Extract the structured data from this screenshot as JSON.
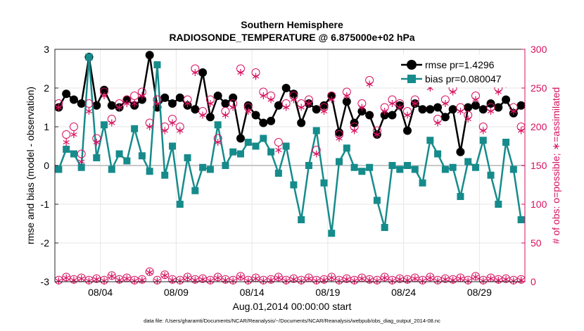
{
  "colors": {
    "rmse": "#000000",
    "bias": "#168B8B",
    "counts": "#D6115F",
    "zero_line": "#C8C8C8",
    "grid": "#E6E6E6"
  },
  "chart_data": {
    "type": "line",
    "title": "Southern Hemisphere",
    "subtitle": "RADIOSONDE_TEMPERATURE @ 6.875000e+02 hPa",
    "xlabel": "Aug.01,2014 00:00:00 start",
    "ylabel": "rmse and bias (model - observation)",
    "y2label": "# of obs: o=possible; ∗=assimilated",
    "footnote": "data file: /Users/gharamti/Documents/NCAR/Reanalysis/~/Documents/NCAR/Reanalysis/webpub/obs_diag_output_2014-08.nc",
    "x_range": [
      0,
      62
    ],
    "x_unit": "12-hour analysis cycles since Aug.01,2014 00:00",
    "ylim": [
      -3,
      3
    ],
    "y2lim": [
      0,
      300
    ],
    "x_ticks": [
      {
        "label": "08/04",
        "value": 6
      },
      {
        "label": "08/09",
        "value": 16
      },
      {
        "label": "08/14",
        "value": 26
      },
      {
        "label": "08/19",
        "value": 36
      },
      {
        "label": "08/24",
        "value": 46
      },
      {
        "label": "08/29",
        "value": 56
      }
    ],
    "y_ticks": [
      {
        "label": "-3",
        "value": -3
      },
      {
        "label": "-2",
        "value": -2
      },
      {
        "label": "-1",
        "value": -1
      },
      {
        "label": "0",
        "value": 0
      },
      {
        "label": "1",
        "value": 1
      },
      {
        "label": "2",
        "value": 2
      },
      {
        "label": "3",
        "value": 3
      }
    ],
    "y2_ticks": [
      {
        "label": "0",
        "value": 0
      },
      {
        "label": "50",
        "value": 50
      },
      {
        "label": "100",
        "value": 100
      },
      {
        "label": "150",
        "value": 150
      },
      {
        "label": "200",
        "value": 200
      },
      {
        "label": "250",
        "value": 250
      },
      {
        "label": "300",
        "value": 300
      }
    ],
    "legend": {
      "position": "top-right",
      "rmse_label": "rmse pr=1.4296",
      "bias_label": "bias pr=0.080047"
    },
    "series": [
      {
        "name": "rmse",
        "axis": "left",
        "marker": "circle",
        "x": [
          0.5,
          1.5,
          2.5,
          3.5,
          4.5,
          5.5,
          6.5,
          7.5,
          8.5,
          9.5,
          10.5,
          11.5,
          12.5,
          13.5,
          14.5,
          15.5,
          16.5,
          17.5,
          18.5,
          19.5,
          20.5,
          21.5,
          22.5,
          23.5,
          24.5,
          25.5,
          26.5,
          27.5,
          28.5,
          29.5,
          30.5,
          31.5,
          32.5,
          33.5,
          34.5,
          35.5,
          36.5,
          37.5,
          38.5,
          39.5,
          40.5,
          41.5,
          42.5,
          43.5,
          44.5,
          45.5,
          46.5,
          47.5,
          48.5,
          49.5,
          50.5,
          51.5,
          52.5,
          53.5,
          54.5,
          55.5,
          56.5,
          57.5,
          58.5,
          59.5,
          60.5,
          61.5
        ],
        "values": [
          1.5,
          1.85,
          1.7,
          1.6,
          2.8,
          1.55,
          1.95,
          1.55,
          1.5,
          1.7,
          1.55,
          1.7,
          2.85,
          1.5,
          1.75,
          1.6,
          1.75,
          1.55,
          1.45,
          2.4,
          1.25,
          1.8,
          1.6,
          1.75,
          0.7,
          1.55,
          1.3,
          1.1,
          1.15,
          1.55,
          2.0,
          1.85,
          1.1,
          1.6,
          1.45,
          1.55,
          1.8,
          0.85,
          1.65,
          1.1,
          1.4,
          1.3,
          0.8,
          1.3,
          1.3,
          1.55,
          0.9,
          1.6,
          1.45,
          1.45,
          1.5,
          1.25,
          1.45,
          0.35,
          1.5,
          1.55,
          1.45,
          1.6,
          1.5,
          1.7,
          1.35,
          1.55
        ]
      },
      {
        "name": "bias",
        "axis": "left",
        "marker": "square",
        "x": [
          0.5,
          1.5,
          2.5,
          3.5,
          4.5,
          5.5,
          6.5,
          7.5,
          8.5,
          9.5,
          10.5,
          11.5,
          12.5,
          13.5,
          14.5,
          15.5,
          16.5,
          17.5,
          18.5,
          19.5,
          20.5,
          21.5,
          22.5,
          23.5,
          24.5,
          25.5,
          26.5,
          27.5,
          28.5,
          29.5,
          30.5,
          31.5,
          32.5,
          33.5,
          34.5,
          35.5,
          36.5,
          37.5,
          38.5,
          39.5,
          40.5,
          41.5,
          42.5,
          43.5,
          44.5,
          45.5,
          46.5,
          47.5,
          48.5,
          49.5,
          50.5,
          51.5,
          52.5,
          53.5,
          54.5,
          55.5,
          56.5,
          57.5,
          58.5,
          59.5,
          60.5,
          61.5
        ],
        "values": [
          -0.1,
          0.42,
          0.3,
          -0.05,
          2.8,
          0.2,
          1.05,
          -0.1,
          0.3,
          0.12,
          0.95,
          0.25,
          -0.15,
          2.6,
          -0.25,
          0.5,
          -1.0,
          0.2,
          -0.65,
          -0.05,
          -0.1,
          1.05,
          0.0,
          0.35,
          0.3,
          0.6,
          0.5,
          0.7,
          0.35,
          -0.2,
          0.5,
          -0.5,
          -1.4,
          0.0,
          0.9,
          -0.45,
          -1.75,
          0.1,
          0.45,
          -0.05,
          -0.15,
          -0.05,
          -0.9,
          -1.6,
          0.0,
          -0.1,
          0.0,
          -0.1,
          -0.45,
          0.65,
          0.3,
          -0.1,
          -0.05,
          -0.8,
          0.1,
          -0.05,
          0.65,
          -0.25,
          -1.0,
          0.6,
          -0.1,
          -1.4
        ]
      },
      {
        "name": "# of obs possible",
        "axis": "right",
        "marker": "open-circle",
        "x": [
          0.5,
          1.5,
          2.5,
          3.5,
          4.5,
          5.5,
          6.5,
          7.5,
          8.5,
          9.5,
          10.5,
          11.5,
          12.5,
          13.5,
          14.5,
          15.5,
          16.5,
          17.5,
          18.5,
          19.5,
          20.5,
          21.5,
          22.5,
          23.5,
          24.5,
          25.5,
          26.5,
          27.5,
          28.5,
          29.5,
          30.5,
          31.5,
          32.5,
          33.5,
          34.5,
          35.5,
          36.5,
          37.5,
          38.5,
          39.5,
          40.5,
          41.5,
          42.5,
          43.5,
          44.5,
          45.5,
          46.5,
          47.5,
          48.5,
          49.5,
          50.5,
          51.5,
          52.5,
          53.5,
          54.5,
          55.5,
          56.5,
          57.5,
          58.5,
          59.5,
          60.5,
          61.5
        ],
        "values": [
          230,
          190,
          200,
          165,
          230,
          185,
          245,
          210,
          230,
          235,
          240,
          245,
          205,
          235,
          200,
          210,
          200,
          235,
          275,
          220,
          235,
          185,
          220,
          230,
          275,
          225,
          270,
          245,
          240,
          180,
          230,
          240,
          230,
          235,
          170,
          225,
          240,
          190,
          245,
          200,
          230,
          260,
          195,
          225,
          235,
          230,
          220,
          235,
          280,
          260,
          210,
          235,
          250,
          225,
          215,
          240,
          200,
          225,
          250,
          260,
          225,
          200
        ]
      },
      {
        "name": "# of obs assimilated",
        "axis": "right",
        "marker": "asterisk",
        "x": [
          0.5,
          1.5,
          2.5,
          3.5,
          4.5,
          5.5,
          6.5,
          7.5,
          8.5,
          9.5,
          10.5,
          11.5,
          12.5,
          13.5,
          14.5,
          15.5,
          16.5,
          17.5,
          18.5,
          19.5,
          20.5,
          21.5,
          22.5,
          23.5,
          24.5,
          25.5,
          26.5,
          27.5,
          28.5,
          29.5,
          30.5,
          31.5,
          32.5,
          33.5,
          34.5,
          35.5,
          36.5,
          37.5,
          38.5,
          39.5,
          40.5,
          41.5,
          42.5,
          43.5,
          44.5,
          45.5,
          46.5,
          47.5,
          48.5,
          49.5,
          50.5,
          51.5,
          52.5,
          53.5,
          54.5,
          55.5,
          56.5,
          57.5,
          58.5,
          59.5,
          60.5,
          61.5
        ],
        "values": [
          225,
          180,
          190,
          155,
          220,
          180,
          240,
          205,
          225,
          230,
          230,
          240,
          200,
          230,
          195,
          205,
          195,
          230,
          270,
          215,
          230,
          180,
          215,
          225,
          270,
          220,
          265,
          240,
          235,
          170,
          225,
          235,
          225,
          230,
          165,
          220,
          235,
          185,
          240,
          195,
          225,
          255,
          190,
          220,
          230,
          225,
          215,
          230,
          262,
          250,
          205,
          230,
          245,
          220,
          210,
          235,
          195,
          220,
          245,
          255,
          220,
          195
        ]
      },
      {
        "name": "# of obs (bottom possible)",
        "axis": "right",
        "marker": "open-circle",
        "x": [
          0.5,
          1.5,
          2.5,
          3.5,
          4.5,
          5.5,
          6.5,
          7.5,
          8.5,
          9.5,
          10.5,
          11.5,
          12.5,
          13.5,
          14.5,
          15.5,
          16.5,
          17.5,
          18.5,
          19.5,
          20.5,
          21.5,
          22.5,
          23.5,
          24.5,
          25.5,
          26.5,
          27.5,
          28.5,
          29.5,
          30.5,
          31.5,
          32.5,
          33.5,
          34.5,
          35.5,
          36.5,
          37.5,
          38.5,
          39.5,
          40.5,
          41.5,
          42.5,
          43.5,
          44.5,
          45.5,
          46.5,
          47.5,
          48.5,
          49.5,
          50.5,
          51.5,
          52.5,
          53.5,
          54.5,
          55.5,
          56.5,
          57.5,
          58.5,
          59.5,
          60.5,
          61.5
        ],
        "values": [
          2,
          6,
          3,
          5,
          2,
          4,
          2,
          8,
          3,
          5,
          2,
          3,
          13,
          2,
          9,
          3,
          2,
          6,
          3,
          4,
          2,
          6,
          3,
          2,
          7,
          2,
          5,
          2,
          3,
          6,
          2,
          4,
          2,
          5,
          2,
          3,
          6,
          2,
          4,
          2,
          5,
          3,
          2,
          6,
          2,
          4,
          3,
          5,
          2,
          6,
          2,
          4,
          3,
          5,
          2,
          7,
          2,
          5,
          3,
          4,
          2,
          3
        ]
      },
      {
        "name": "# of obs (bottom assimilated)",
        "axis": "right",
        "marker": "asterisk",
        "x": [
          0.5,
          1.5,
          2.5,
          3.5,
          4.5,
          5.5,
          6.5,
          7.5,
          8.5,
          9.5,
          10.5,
          11.5,
          12.5,
          13.5,
          14.5,
          15.5,
          16.5,
          17.5,
          18.5,
          19.5,
          20.5,
          21.5,
          22.5,
          23.5,
          24.5,
          25.5,
          26.5,
          27.5,
          28.5,
          29.5,
          30.5,
          31.5,
          32.5,
          33.5,
          34.5,
          35.5,
          36.5,
          37.5,
          38.5,
          39.5,
          40.5,
          41.5,
          42.5,
          43.5,
          44.5,
          45.5,
          46.5,
          47.5,
          48.5,
          49.5,
          50.5,
          51.5,
          52.5,
          53.5,
          54.5,
          55.5,
          56.5,
          57.5,
          58.5,
          59.5,
          60.5,
          61.5
        ],
        "values": [
          1,
          5,
          2,
          4,
          1,
          3,
          1,
          7,
          2,
          4,
          1,
          2,
          12,
          1,
          8,
          2,
          1,
          5,
          2,
          3,
          1,
          5,
          2,
          1,
          6,
          1,
          4,
          1,
          2,
          5,
          1,
          3,
          1,
          4,
          1,
          2,
          5,
          1,
          3,
          1,
          4,
          2,
          1,
          5,
          1,
          3,
          2,
          4,
          1,
          5,
          1,
          3,
          2,
          4,
          1,
          6,
          1,
          4,
          2,
          3,
          1,
          2
        ]
      }
    ]
  }
}
